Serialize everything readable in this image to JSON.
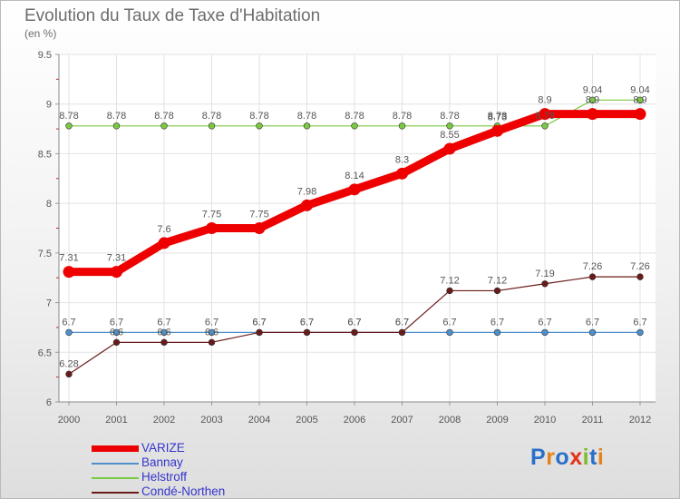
{
  "header": {
    "title": "Evolution du Taux de Taxe d'Habitation",
    "unit": "(en %)"
  },
  "brand": {
    "name": "Proxiti",
    "colors": [
      "#2a6fc9",
      "#e5831b",
      "#2a6fc9",
      "#e2341b",
      "#7dbb2e",
      "#2a6fc9",
      "#e5831b"
    ]
  },
  "chart_data": {
    "type": "line",
    "title": "Evolution du Taux de Taxe d'Habitation",
    "ylabel": "(en %)",
    "xlabel": "",
    "x": [
      "2000",
      "2001",
      "2002",
      "2003",
      "2004",
      "2005",
      "2006",
      "2007",
      "2008",
      "2009",
      "2010",
      "2011",
      "2012"
    ],
    "ylim": [
      6,
      9.5
    ],
    "yticks": [
      "6",
      "6.5",
      "7",
      "7.5",
      "8",
      "8.5",
      "9",
      "9.5"
    ],
    "grid": true,
    "legend_position": "bottom-left",
    "series": [
      {
        "name": "VARIZE",
        "color": "#ee0000",
        "values": [
          7.31,
          7.31,
          7.6,
          7.75,
          7.75,
          7.98,
          8.14,
          8.3,
          8.55,
          8.73,
          8.9,
          8.9,
          8.9
        ],
        "labels": [
          "7.31",
          "7.31",
          "7.6",
          "7.75",
          "7.75",
          "7.98",
          "8.14",
          "8.3",
          "8.55",
          "8.73",
          "8.9",
          "8.9",
          "8.9"
        ]
      },
      {
        "name": "Bannay",
        "color": "#4f8fca",
        "values": [
          6.7,
          6.7,
          6.7,
          6.7,
          6.7,
          6.7,
          6.7,
          6.7,
          6.7,
          6.7,
          6.7,
          6.7,
          6.7
        ],
        "labels": [
          "6.7",
          "6.7",
          "6.7",
          "6.7",
          "6.7",
          "6.7",
          "6.7",
          "6.7",
          "6.7",
          "6.7",
          "6.7",
          "6.7",
          "6.7"
        ]
      },
      {
        "name": "Helstroff",
        "color": "#7ac943",
        "values": [
          8.78,
          8.78,
          8.78,
          8.78,
          8.78,
          8.78,
          8.78,
          8.78,
          8.78,
          8.78,
          8.78,
          9.04,
          9.04
        ],
        "labels": [
          "8.78",
          "8.78",
          "8.78",
          "8.78",
          "8.78",
          "8.78",
          "8.78",
          "8.78",
          "8.78",
          "8.78",
          "8.78",
          "9.04",
          "9.04"
        ]
      },
      {
        "name": "Condé-Northen",
        "color": "#6b1a1a",
        "values": [
          6.28,
          6.6,
          6.6,
          6.6,
          6.7,
          6.7,
          6.7,
          6.7,
          7.12,
          7.12,
          7.19,
          7.26,
          7.26
        ],
        "labels": [
          "6.28",
          "6.6",
          "6.6",
          "6.6",
          "6.7",
          "6.7",
          "6.7",
          "6.7",
          "7.12",
          "7.12",
          "7.19",
          "7.26",
          "7.26"
        ]
      }
    ]
  }
}
